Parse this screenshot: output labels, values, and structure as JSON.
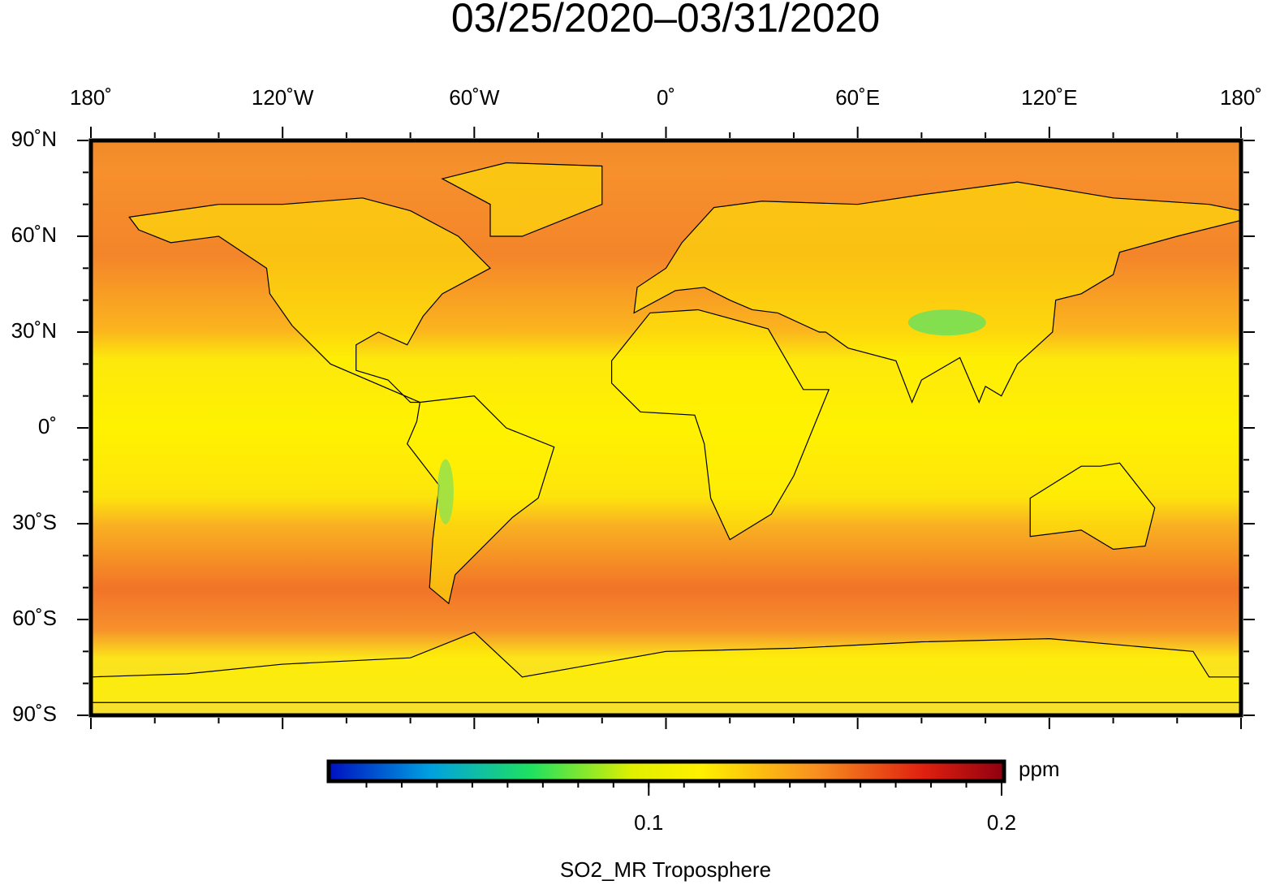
{
  "title": "03/25/2020–03/31/2020",
  "map": {
    "lon_labels": [
      "180˚",
      "120˚W",
      "60˚W",
      "0˚",
      "60˚E",
      "120˚E",
      "180˚"
    ],
    "lat_labels": [
      "90˚N",
      "60˚N",
      "30˚N",
      "0˚",
      "30˚S",
      "60˚S",
      "90˚S"
    ]
  },
  "colorbar": {
    "range": [
      0.01,
      0.2
    ],
    "ticks": [
      0.1,
      0.2
    ],
    "unit": "ppm",
    "label": "SO2_MR Troposphere"
  }
}
